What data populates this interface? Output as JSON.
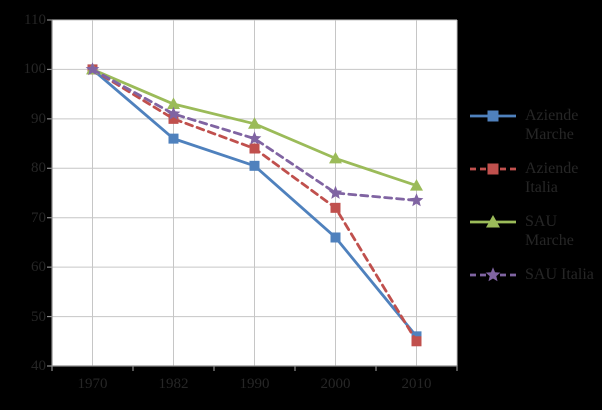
{
  "chart_data": {
    "type": "line",
    "title": "",
    "categories": [
      "1970",
      "1982",
      "1990",
      "2000",
      "2010"
    ],
    "series": [
      {
        "name": "Aziende Marche",
        "values": [
          100,
          86,
          80.5,
          66,
          46
        ],
        "color": "#4F81BD",
        "line_style": "solid",
        "marker": "square"
      },
      {
        "name": "Aziende Italia",
        "values": [
          100,
          90,
          84,
          72,
          45
        ],
        "color": "#C0504D",
        "line_style": "dashed",
        "marker": "square"
      },
      {
        "name": "SAU Marche",
        "values": [
          100,
          93,
          89,
          82,
          76.5
        ],
        "color": "#9BBB59",
        "line_style": "solid",
        "marker": "triangle"
      },
      {
        "name": "SAU Italia",
        "values": [
          100,
          91,
          86,
          75,
          73.5
        ],
        "color": "#8064A2",
        "line_style": "dashed",
        "marker": "star"
      }
    ],
    "xlabel": "",
    "ylabel": "",
    "ylim": [
      40,
      110
    ],
    "yticks": [
      110,
      100,
      90,
      80,
      70,
      60,
      50,
      40
    ],
    "grid": true,
    "legend_position": "right"
  },
  "colors": {
    "background": "#000000",
    "plot_background": "#FFFFFF",
    "gridline": "#C6C6C6",
    "axis_line": "#8E8E8E",
    "tick_label": "#262626",
    "legend_text": "#262626"
  }
}
